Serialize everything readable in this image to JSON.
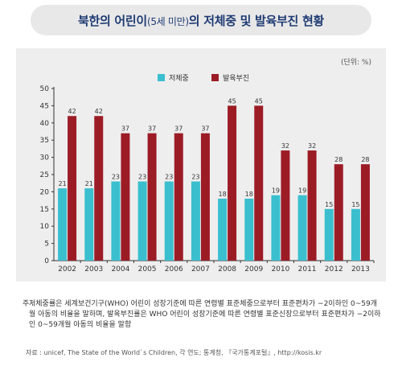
{
  "title": {
    "main_a": "북한의 어린이",
    "sub": "(5세 미만)",
    "main_b": "의 저체중 및 발육부진 현황"
  },
  "chart_data": {
    "type": "bar",
    "unit_label": "(단위: %)",
    "categories": [
      "2002",
      "2003",
      "2004",
      "2005",
      "2006",
      "2007",
      "2008",
      "2009",
      "2010",
      "2011",
      "2012",
      "2013"
    ],
    "series": [
      {
        "name": "저체중",
        "color": "#3bbfcf",
        "values": [
          21,
          21,
          23,
          23,
          23,
          23,
          18,
          18,
          19,
          19,
          15,
          15
        ]
      },
      {
        "name": "발육부진",
        "color": "#9c1c26",
        "values": [
          42,
          42,
          37,
          37,
          37,
          37,
          45,
          45,
          32,
          32,
          28,
          28
        ]
      }
    ],
    "ylim": [
      0,
      50
    ],
    "yticks": [
      0,
      5,
      10,
      15,
      20,
      25,
      30,
      35,
      40,
      45,
      50
    ],
    "legend_position": "top-center",
    "grid": false
  },
  "note": {
    "lead": "주 :",
    "text": "저체중률은 세계보건기구(WHO) 어린이 성장기준에 따른 연령별 표준체중으로부터 표준편차가 −2이하인 0~59개월 아동의 비율을 말하며, 발육부진률은 WHO 어린이 성장기준에 따른 연령별 표준신장으로부터 표준편차가 −2이하인 0~59개월 아동의 비율을 말함"
  },
  "source": "자료 : unicef, The State of the World`s Children, 각 연도; 통계청, 『국가통계포털』, http://kosis.kr"
}
